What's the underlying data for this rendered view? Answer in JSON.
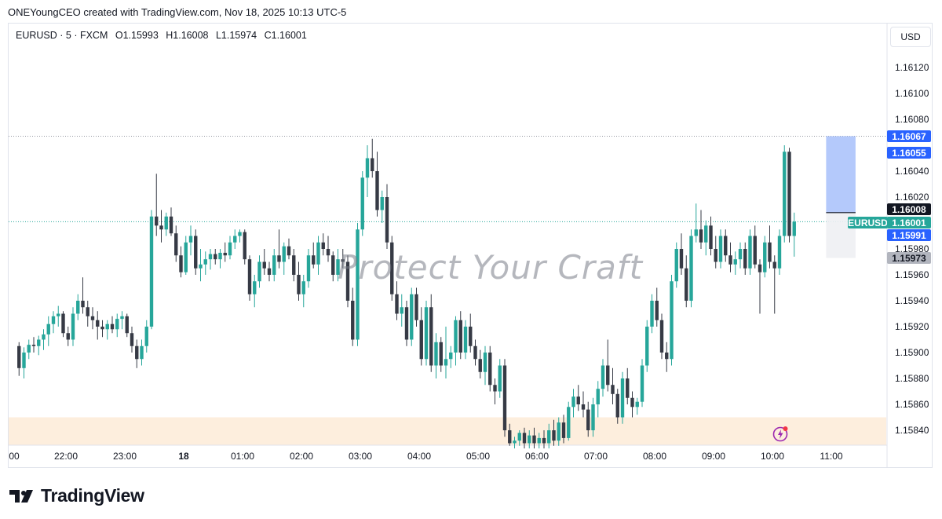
{
  "caption": "ONEYoungCEO created with TradingView.com, Nov 18, 2025 10:13 UTC-5",
  "legend": {
    "symbol": "EURUSD · 5 · FXCM",
    "open": "O1.15993",
    "high": "H1.16008",
    "low": "L1.15974",
    "close": "C1.16001"
  },
  "currency_button": "USD",
  "watermark": "Protect Your Craft",
  "brand": "TradingView",
  "symbol_tag": "EURUSD",
  "price_tags": {
    "top_blue": "1.16067",
    "second_blue": "1.16055",
    "black": "1.16008",
    "current": "1.16001",
    "lower_blue": "1.15991",
    "gray": "1.15973"
  },
  "colors": {
    "up": "#26a69a",
    "down": "#363a45",
    "blue": "#2962ff",
    "zone": "#fdeedd",
    "box": "#a7bffa",
    "gray_tag": "#b2b5be"
  },
  "chart_data": {
    "type": "candlestick",
    "symbol": "EURUSD",
    "interval": "5",
    "ylim": [
      1.15828,
      1.16138
    ],
    "y_ticks": [
      "1.16120",
      "1.16100",
      "1.16080",
      "1.16040",
      "1.16020",
      "1.15980",
      "1.15960",
      "1.15940",
      "1.15920",
      "1.15900",
      "1.15880",
      "1.15860",
      "1.15840"
    ],
    "x_ticks": [
      "00",
      "22:00",
      "23:00",
      "18",
      "01:00",
      "02:00",
      "03:00",
      "04:00",
      "05:00",
      "06:00",
      "07:00",
      "08:00",
      "09:00",
      "10:00",
      "11:00"
    ],
    "x_tick_bold": [
      "18"
    ],
    "bar_start_index": -1,
    "candles": [
      [
        1.15905,
        1.15908,
        1.15882,
        1.15888
      ],
      [
        1.15888,
        1.15904,
        1.1588,
        1.159
      ],
      [
        1.159,
        1.1591,
        1.15895,
        1.15906
      ],
      [
        1.15906,
        1.15912,
        1.159,
        1.15905
      ],
      [
        1.15905,
        1.15913,
        1.15898,
        1.1591
      ],
      [
        1.1591,
        1.15918,
        1.15902,
        1.15914
      ],
      [
        1.15914,
        1.15928,
        1.15905,
        1.15922
      ],
      [
        1.15922,
        1.15932,
        1.15915,
        1.15928
      ],
      [
        1.15928,
        1.15936,
        1.1592,
        1.1593
      ],
      [
        1.1593,
        1.15932,
        1.15912,
        1.15915
      ],
      [
        1.15915,
        1.1592,
        1.15905,
        1.1591
      ],
      [
        1.1591,
        1.15935,
        1.15905,
        1.1593
      ],
      [
        1.1593,
        1.15945,
        1.15925,
        1.1594
      ],
      [
        1.1594,
        1.15958,
        1.1593,
        1.15935
      ],
      [
        1.15935,
        1.1594,
        1.1592,
        1.15928
      ],
      [
        1.15928,
        1.15935,
        1.15918,
        1.15925
      ],
      [
        1.15925,
        1.15932,
        1.1591,
        1.1592
      ],
      [
        1.1592,
        1.15925,
        1.15912,
        1.15918
      ],
      [
        1.15918,
        1.15925,
        1.1591,
        1.15922
      ],
      [
        1.15922,
        1.15928,
        1.15915,
        1.15918
      ],
      [
        1.15918,
        1.1593,
        1.15912,
        1.15926
      ],
      [
        1.15926,
        1.15932,
        1.15918,
        1.15928
      ],
      [
        1.15928,
        1.1593,
        1.15912,
        1.15915
      ],
      [
        1.15915,
        1.1592,
        1.159,
        1.15905
      ],
      [
        1.15905,
        1.1591,
        1.15888,
        1.15895
      ],
      [
        1.15895,
        1.1591,
        1.1589,
        1.15905
      ],
      [
        1.15905,
        1.15925,
        1.159,
        1.1592
      ],
      [
        1.1592,
        1.1601,
        1.15918,
        1.16005
      ],
      [
        1.16005,
        1.16038,
        1.1599,
        1.15998
      ],
      [
        1.15998,
        1.1601,
        1.15985,
        1.15995
      ],
      [
        1.15995,
        1.16008,
        1.1599,
        1.16005
      ],
      [
        1.16005,
        1.16012,
        1.1599,
        1.15992
      ],
      [
        1.15992,
        1.15998,
        1.1597,
        1.15975
      ],
      [
        1.15975,
        1.15982,
        1.15958,
        1.15962
      ],
      [
        1.15962,
        1.1599,
        1.1596,
        1.15985
      ],
      [
        1.15985,
        1.15998,
        1.15975,
        1.1599
      ],
      [
        1.1599,
        1.15995,
        1.1596,
        1.15965
      ],
      [
        1.15965,
        1.1598,
        1.15955,
        1.15968
      ],
      [
        1.15968,
        1.15978,
        1.1596,
        1.15972
      ],
      [
        1.15972,
        1.1598,
        1.15964,
        1.15976
      ],
      [
        1.15976,
        1.1598,
        1.15968,
        1.15972
      ],
      [
        1.15972,
        1.1598,
        1.15965,
        1.15977
      ],
      [
        1.15977,
        1.15985,
        1.1597,
        1.15975
      ],
      [
        1.15975,
        1.1599,
        1.15972,
        1.15985
      ],
      [
        1.15985,
        1.15995,
        1.1598,
        1.1599
      ],
      [
        1.1599,
        1.15995,
        1.15985,
        1.15993
      ],
      [
        1.15993,
        1.15995,
        1.15968,
        1.15972
      ],
      [
        1.15972,
        1.15975,
        1.1594,
        1.15945
      ],
      [
        1.15945,
        1.1596,
        1.15935,
        1.15955
      ],
      [
        1.15955,
        1.15975,
        1.1595,
        1.1597
      ],
      [
        1.1597,
        1.1598,
        1.1596,
        1.15965
      ],
      [
        1.15965,
        1.1597,
        1.15955,
        1.1596
      ],
      [
        1.1596,
        1.1598,
        1.15955,
        1.15975
      ],
      [
        1.15975,
        1.15995,
        1.15965,
        1.1597
      ],
      [
        1.1597,
        1.15985,
        1.1596,
        1.15982
      ],
      [
        1.15982,
        1.15988,
        1.15972,
        1.15975
      ],
      [
        1.15975,
        1.1598,
        1.15955,
        1.1596
      ],
      [
        1.1596,
        1.1597,
        1.1594,
        1.15945
      ],
      [
        1.15945,
        1.1596,
        1.15935,
        1.15955
      ],
      [
        1.15955,
        1.1598,
        1.1595,
        1.15975
      ],
      [
        1.15975,
        1.15985,
        1.15965,
        1.15968
      ],
      [
        1.15968,
        1.1599,
        1.1596,
        1.15985
      ],
      [
        1.15985,
        1.15992,
        1.15975,
        1.1598
      ],
      [
        1.1598,
        1.1599,
        1.1597,
        1.15975
      ],
      [
        1.15975,
        1.15978,
        1.15955,
        1.1596
      ],
      [
        1.1596,
        1.1598,
        1.15955,
        1.15972
      ],
      [
        1.15972,
        1.1598,
        1.15965,
        1.1597
      ],
      [
        1.1597,
        1.15975,
        1.15935,
        1.1594
      ],
      [
        1.1594,
        1.1595,
        1.15905,
        1.1591
      ],
      [
        1.1591,
        1.16,
        1.15905,
        1.15995
      ],
      [
        1.15995,
        1.1604,
        1.1599,
        1.16035
      ],
      [
        1.16035,
        1.1606,
        1.1602,
        1.1605
      ],
      [
        1.1605,
        1.16065,
        1.16035,
        1.1604
      ],
      [
        1.1604,
        1.16055,
        1.16005,
        1.1601
      ],
      [
        1.1601,
        1.16025,
        1.16,
        1.1602
      ],
      [
        1.1602,
        1.1603,
        1.1598,
        1.15985
      ],
      [
        1.15985,
        1.1599,
        1.1594,
        1.15945
      ],
      [
        1.15945,
        1.15955,
        1.15925,
        1.1593
      ],
      [
        1.1593,
        1.15945,
        1.1592,
        1.15935
      ],
      [
        1.15935,
        1.1594,
        1.15905,
        1.1591
      ],
      [
        1.1591,
        1.1595,
        1.15905,
        1.15945
      ],
      [
        1.15945,
        1.1595,
        1.1592,
        1.15925
      ],
      [
        1.15925,
        1.15935,
        1.1589,
        1.15895
      ],
      [
        1.15895,
        1.1594,
        1.1589,
        1.15935
      ],
      [
        1.15935,
        1.15945,
        1.15885,
        1.1589
      ],
      [
        1.1589,
        1.15915,
        1.1588,
        1.15908
      ],
      [
        1.15908,
        1.15912,
        1.15885,
        1.1589
      ],
      [
        1.1589,
        1.1592,
        1.1588,
        1.15895
      ],
      [
        1.15895,
        1.15905,
        1.15888,
        1.159
      ],
      [
        1.159,
        1.15928,
        1.1589,
        1.15925
      ],
      [
        1.15925,
        1.15932,
        1.15895,
        1.159
      ],
      [
        1.159,
        1.15925,
        1.15895,
        1.1592
      ],
      [
        1.1592,
        1.1593,
        1.159,
        1.15905
      ],
      [
        1.15905,
        1.1591,
        1.1589,
        1.15895
      ],
      [
        1.15895,
        1.15902,
        1.1588,
        1.15885
      ],
      [
        1.15885,
        1.15905,
        1.15875,
        1.159
      ],
      [
        1.159,
        1.15905,
        1.1587,
        1.15875
      ],
      [
        1.15875,
        1.1588,
        1.1586,
        1.1587
      ],
      [
        1.1587,
        1.15895,
        1.15865,
        1.1589
      ],
      [
        1.1589,
        1.15895,
        1.15835,
        1.1584
      ],
      [
        1.1584,
        1.15845,
        1.15828,
        1.1583
      ],
      [
        1.1583,
        1.15835,
        1.15826,
        1.15832
      ],
      [
        1.15832,
        1.1584,
        1.15828,
        1.15838
      ],
      [
        1.15838,
        1.15842,
        1.15826,
        1.1583
      ],
      [
        1.1583,
        1.1584,
        1.15826,
        1.15836
      ],
      [
        1.15836,
        1.15842,
        1.15826,
        1.1583
      ],
      [
        1.1583,
        1.15838,
        1.15826,
        1.15834
      ],
      [
        1.15834,
        1.1584,
        1.15826,
        1.1583
      ],
      [
        1.1583,
        1.15845,
        1.15826,
        1.1584
      ],
      [
        1.1584,
        1.15848,
        1.15828,
        1.15832
      ],
      [
        1.15832,
        1.1585,
        1.15828,
        1.15846
      ],
      [
        1.15846,
        1.15852,
        1.1583,
        1.15834
      ],
      [
        1.15834,
        1.15862,
        1.15832,
        1.15858
      ],
      [
        1.15858,
        1.15872,
        1.1585,
        1.15866
      ],
      [
        1.15866,
        1.15875,
        1.15855,
        1.1586
      ],
      [
        1.1586,
        1.1587,
        1.1585,
        1.15856
      ],
      [
        1.15856,
        1.15862,
        1.15835,
        1.1584
      ],
      [
        1.1584,
        1.15865,
        1.15835,
        1.1586
      ],
      [
        1.1586,
        1.15878,
        1.1585,
        1.15872
      ],
      [
        1.15872,
        1.15895,
        1.15866,
        1.1589
      ],
      [
        1.1589,
        1.1591,
        1.1587,
        1.15875
      ],
      [
        1.15875,
        1.15888,
        1.1586,
        1.15868
      ],
      [
        1.15868,
        1.15872,
        1.15845,
        1.1585
      ],
      [
        1.1585,
        1.15885,
        1.15845,
        1.1588
      ],
      [
        1.1588,
        1.15888,
        1.1586,
        1.15865
      ],
      [
        1.15865,
        1.1587,
        1.1585,
        1.15858
      ],
      [
        1.15858,
        1.15865,
        1.15852,
        1.15862
      ],
      [
        1.15862,
        1.15895,
        1.15858,
        1.1589
      ],
      [
        1.1589,
        1.15925,
        1.15885,
        1.1592
      ],
      [
        1.1592,
        1.15945,
        1.15915,
        1.1594
      ],
      [
        1.1594,
        1.1595,
        1.1592,
        1.15925
      ],
      [
        1.15925,
        1.1593,
        1.15895,
        1.159
      ],
      [
        1.159,
        1.15908,
        1.15885,
        1.15895
      ],
      [
        1.15895,
        1.1596,
        1.1589,
        1.15955
      ],
      [
        1.15955,
        1.15985,
        1.1595,
        1.1598
      ],
      [
        1.1598,
        1.15992,
        1.1596,
        1.15965
      ],
      [
        1.15965,
        1.15975,
        1.15935,
        1.1594
      ],
      [
        1.1594,
        1.15995,
        1.15935,
        1.1599
      ],
      [
        1.1599,
        1.16015,
        1.15985,
        1.15995
      ],
      [
        1.15995,
        1.1601,
        1.1598,
        1.15985
      ],
      [
        1.15985,
        1.16002,
        1.15975,
        1.15998
      ],
      [
        1.15998,
        1.16005,
        1.15975,
        1.1598
      ],
      [
        1.1598,
        1.1599,
        1.15965,
        1.1597
      ],
      [
        1.1597,
        1.15995,
        1.15965,
        1.1599
      ],
      [
        1.1599,
        1.15995,
        1.1597,
        1.15975
      ],
      [
        1.15975,
        1.15985,
        1.15962,
        1.15968
      ],
      [
        1.15968,
        1.15978,
        1.1596,
        1.15972
      ],
      [
        1.15972,
        1.15985,
        1.15965,
        1.1598
      ],
      [
        1.1598,
        1.15985,
        1.1596,
        1.15965
      ],
      [
        1.15965,
        1.15995,
        1.1596,
        1.1599
      ],
      [
        1.1599,
        1.15998,
        1.15965,
        1.15968
      ],
      [
        1.15968,
        1.15972,
        1.1593,
        1.15962
      ],
      [
        1.15962,
        1.1599,
        1.15958,
        1.15985
      ],
      [
        1.15985,
        1.15998,
        1.15965,
        1.1597
      ],
      [
        1.1597,
        1.15975,
        1.1593,
        1.15965
      ],
      [
        1.15965,
        1.15995,
        1.1596,
        1.1599
      ],
      [
        1.1599,
        1.1606,
        1.15985,
        1.16055
      ],
      [
        1.16055,
        1.16058,
        1.15985,
        1.1599
      ],
      [
        1.1599,
        1.16008,
        1.15974,
        1.16001
      ]
    ],
    "price_lines": {
      "current": 1.16001,
      "high_dotted": 1.16067
    },
    "position_box": {
      "entry": 1.16008,
      "target": 1.16067,
      "stop": 1.15973,
      "start_index": 165,
      "end_index": 170
    },
    "demand_zone": [
      1.15828,
      1.1585
    ]
  }
}
